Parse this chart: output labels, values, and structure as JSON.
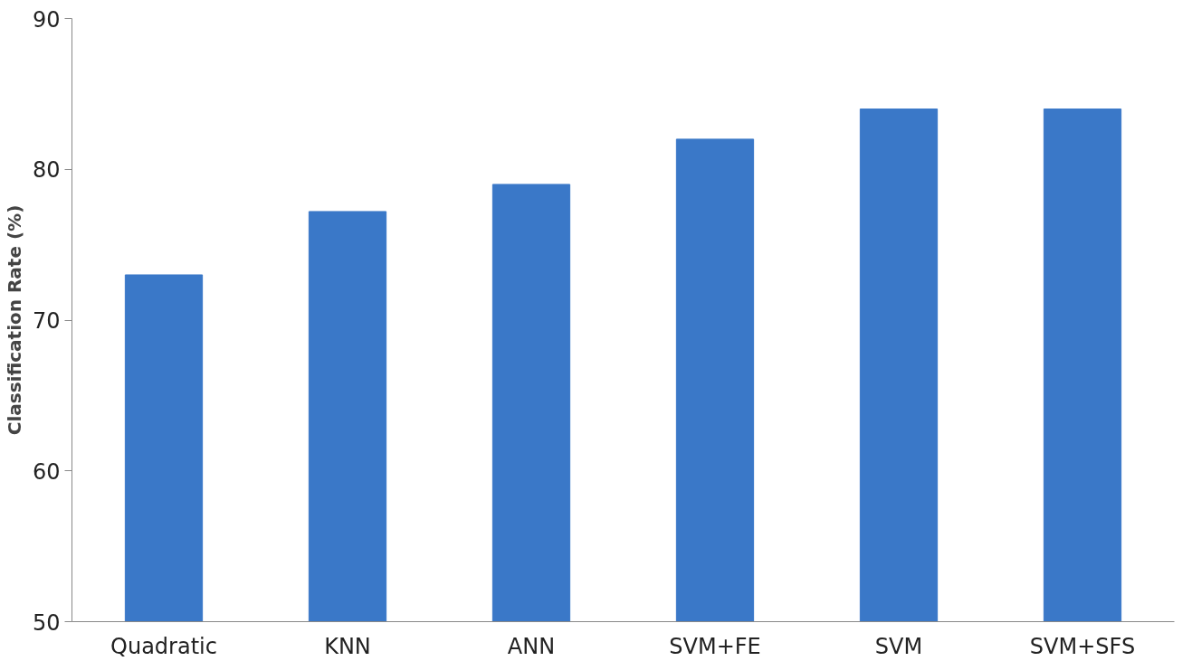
{
  "chart_data": {
    "type": "bar",
    "ylabel": "Classification Rate (%)",
    "categories": [
      "Quadratic",
      "KNN",
      "ANN",
      "SVM+FE",
      "SVM",
      "SVM+SFS"
    ],
    "values": [
      73,
      77.2,
      79,
      82,
      84,
      84
    ],
    "color": "#3a78c8",
    "ylim": [
      50,
      90
    ],
    "yticks": [
      50,
      60,
      70,
      80,
      90
    ],
    "grid": false
  }
}
